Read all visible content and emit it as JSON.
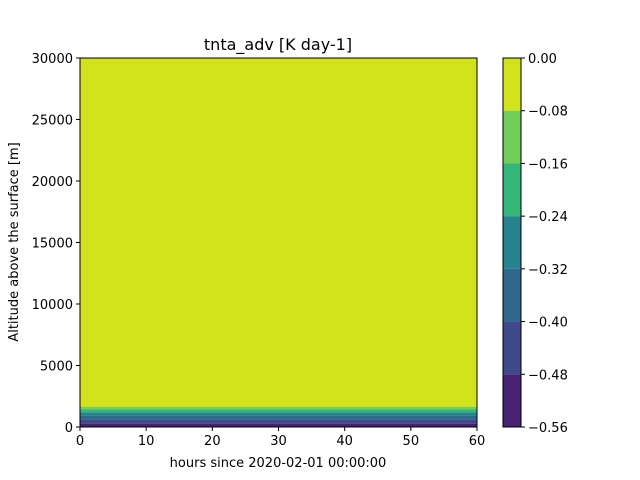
{
  "chart_data": {
    "type": "heatmap",
    "title": "tnta_adv [K day-1]",
    "xlabel": "hours since 2020-02-01 00:00:00",
    "ylabel": "Altitude above the surface [m]",
    "xlim": [
      0,
      60
    ],
    "ylim": [
      0,
      30000
    ],
    "x_ticks": [
      0,
      10,
      20,
      30,
      40,
      50,
      60
    ],
    "y_ticks": [
      0,
      5000,
      10000,
      15000,
      20000,
      25000,
      30000
    ],
    "grid": false,
    "colorbar": {
      "levels": [
        -0.56,
        -0.48,
        -0.4,
        -0.32,
        -0.24,
        -0.16,
        -0.08,
        0.0
      ],
      "tick_labels": [
        "−0.56",
        "−0.48",
        "−0.40",
        "−0.32",
        "−0.24",
        "−0.16",
        "−0.08",
        "0.00"
      ],
      "colors": [
        "#482173",
        "#3e4a89",
        "#31688e",
        "#26828e",
        "#35b779",
        "#6ece58",
        "#d2e21b"
      ]
    },
    "bands": [
      {
        "y0": 0,
        "y1": 300,
        "level_index": 0
      },
      {
        "y0": 300,
        "y1": 600,
        "level_index": 1
      },
      {
        "y0": 600,
        "y1": 900,
        "level_index": 2
      },
      {
        "y0": 900,
        "y1": 1200,
        "level_index": 3
      },
      {
        "y0": 1200,
        "y1": 1450,
        "level_index": 4
      },
      {
        "y0": 1450,
        "y1": 1650,
        "level_index": 5
      },
      {
        "y0": 1650,
        "y1": 30000,
        "level_index": 6
      }
    ]
  }
}
